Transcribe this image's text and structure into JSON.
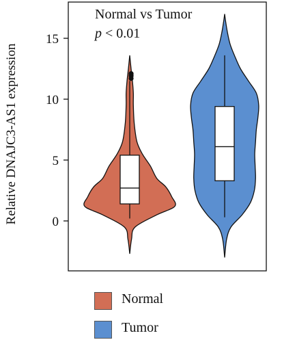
{
  "chart_data": {
    "type": "violin",
    "title": "Normal vs Tumor",
    "annotation_p": "p",
    "annotation_rest": " < 0.01",
    "ylabel": "Relative DNAJC3-AS1 expression",
    "yticks": [
      0,
      5,
      10,
      15
    ],
    "ylim": [
      -2.7,
      17.2
    ],
    "grid": false,
    "legend_position": "bottom",
    "series": [
      {
        "name": "Normal",
        "color": "#d26e55",
        "box": {
          "q1": 1.4,
          "median": 2.7,
          "q3": 5.4,
          "whisker_low": 0.2,
          "whisker_high": 11.5
        },
        "outliers": [
          11.7,
          11.9,
          12.0,
          12.1
        ],
        "density": [
          [
            -2.7,
            0.0
          ],
          [
            -1.5,
            0.04
          ],
          [
            -0.5,
            0.12
          ],
          [
            0.5,
            0.6
          ],
          [
            1.2,
            1.0
          ],
          [
            2.0,
            0.93
          ],
          [
            2.8,
            0.8
          ],
          [
            3.5,
            0.6
          ],
          [
            4.5,
            0.46
          ],
          [
            5.5,
            0.28
          ],
          [
            6.5,
            0.16
          ],
          [
            8.0,
            0.1
          ],
          [
            9.5,
            0.08
          ],
          [
            10.5,
            0.08
          ],
          [
            11.5,
            0.06
          ],
          [
            12.5,
            0.03
          ],
          [
            13.6,
            0.0
          ]
        ]
      },
      {
        "name": "Tumor",
        "color": "#5b8fd0",
        "box": {
          "q1": 3.3,
          "median": 6.1,
          "q3": 9.4,
          "whisker_low": 0.3,
          "whisker_high": 13.6
        },
        "outliers": [],
        "density": [
          [
            -3.0,
            0.0
          ],
          [
            -1.5,
            0.05
          ],
          [
            -0.5,
            0.16
          ],
          [
            0.5,
            0.44
          ],
          [
            1.5,
            0.65
          ],
          [
            2.5,
            0.75
          ],
          [
            3.5,
            0.78
          ],
          [
            4.5,
            0.77
          ],
          [
            5.5,
            0.76
          ],
          [
            6.5,
            0.78
          ],
          [
            7.5,
            0.8
          ],
          [
            8.5,
            0.84
          ],
          [
            9.5,
            0.86
          ],
          [
            10.5,
            0.8
          ],
          [
            11.5,
            0.6
          ],
          [
            12.5,
            0.4
          ],
          [
            13.5,
            0.26
          ],
          [
            14.5,
            0.14
          ],
          [
            15.5,
            0.07
          ],
          [
            16.5,
            0.02
          ],
          [
            17.0,
            0.0
          ]
        ]
      }
    ]
  }
}
